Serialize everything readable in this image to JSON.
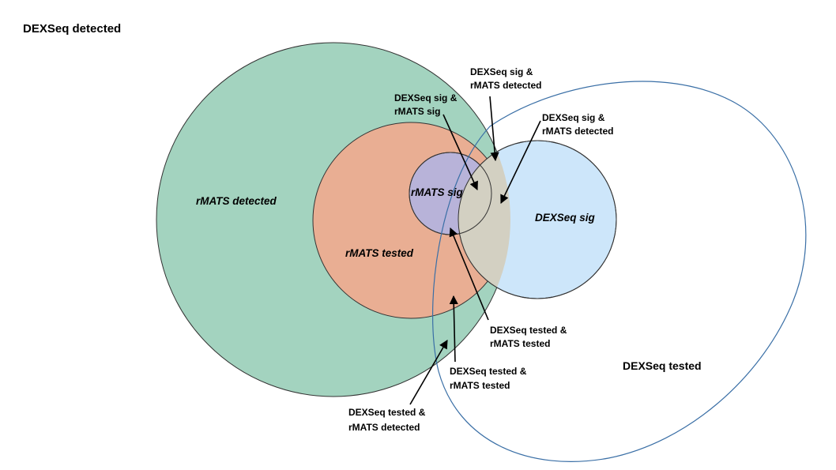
{
  "title": "DEXSeq detected",
  "colors": {
    "rmats_detected": "#a3d3bf",
    "rmats_tested": "#e9ae93",
    "rmats_sig": "#b8b3d9",
    "dexseq_sig": "#cde6fa",
    "overlap_sig": "#d3d0c2",
    "dexseq_tested_stroke": "#3a6fa6"
  },
  "sets": {
    "rmats_detected": "rMATS detected",
    "rmats_tested": "rMATS tested",
    "rmats_sig": "rMATS sig",
    "dexseq_sig": "DEXSeq sig",
    "dexseq_tested": "DEXSeq tested"
  },
  "callouts": [
    {
      "line1": "DEXSeq sig &",
      "line2": "rMATS detected"
    },
    {
      "line1": "DEXSeq sig &",
      "line2": "rMATS sig"
    },
    {
      "line1": "DEXSeq sig &",
      "line2": "rMATS detected"
    },
    {
      "line1": "DEXSeq tested &",
      "line2": "rMATS tested"
    },
    {
      "line1": "DEXSeq tested &",
      "line2": "rMATS tested"
    },
    {
      "line1": "DEXSeq tested &",
      "line2": "rMATS detected"
    }
  ]
}
